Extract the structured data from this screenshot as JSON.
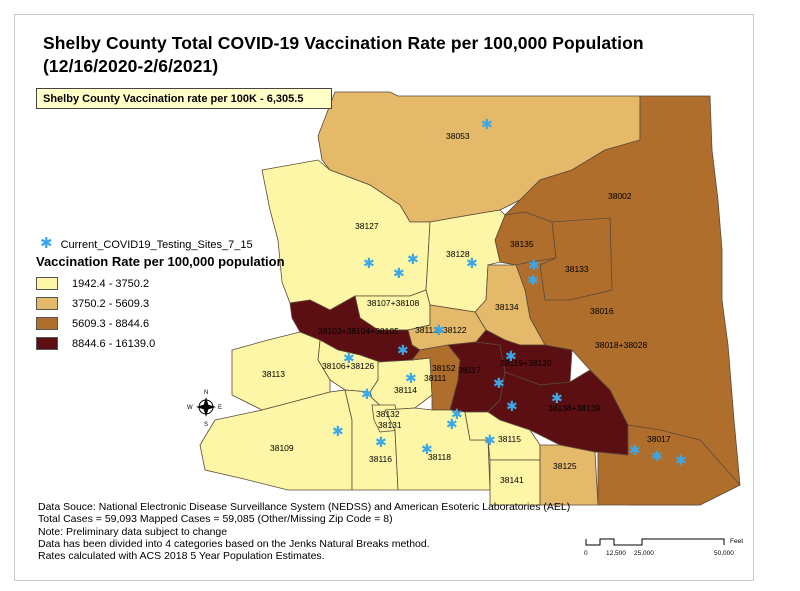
{
  "title_line1": "Shelby County Total COVID-19 Vaccination Rate per 100,000 Population",
  "title_line2": "(12/16/2020-2/6/2021)",
  "summary_box": "Shelby County Vaccination rate per 100K - 6,305.5",
  "sites_legend": "Current_COVID19_Testing_Sites_7_15",
  "legend_title": "Vaccination Rate per 100,000 population",
  "classes": [
    {
      "label": "1942.4 - 3750.2",
      "color": "#fcf6a6"
    },
    {
      "label": "3750.2 - 5609.3",
      "color": "#e4b969"
    },
    {
      "label": "5609.3 - 8844.6",
      "color": "#b06e2c"
    },
    {
      "label": "8844.6 - 16139.0",
      "color": "#5c0f12"
    }
  ],
  "site_color": "#3aa8e8",
  "zip_labels": [
    "38053",
    "38002",
    "38127",
    "38135",
    "38128",
    "38133",
    "38134",
    "38107+38108",
    "38016",
    "38103+38104+38105",
    "38112+38122",
    "38018+38028",
    "38113",
    "38106+38126",
    "38152",
    "38117",
    "38119+38120",
    "38111",
    "38114",
    "38138+38139",
    "38132",
    "38131",
    "38017",
    "38109",
    "38116",
    "38118",
    "38115",
    "38125",
    "38141"
  ],
  "north_arrow": {
    "n": "N",
    "s": "S",
    "e": "E",
    "w": "W"
  },
  "footer_lines": [
    "Data Souce: National Electronic Disease Surveillance System (NEDSS) and American Esoteric Laboratories (AEL)",
    "Total Cases = 59,093 Mapped Cases = 59,085 (Other/Missing Zip Code = 8)",
    "Note: Preliminary data subject to change",
    "Data has been divided into 4 categories based on the Jenks Natural Breaks method.",
    "Rates calculated with ACS 2018 5 Year Population Estimates."
  ],
  "scale": {
    "ticks": [
      "0",
      "12,500",
      "25,000",
      "50,000"
    ],
    "unit": "Feet"
  }
}
